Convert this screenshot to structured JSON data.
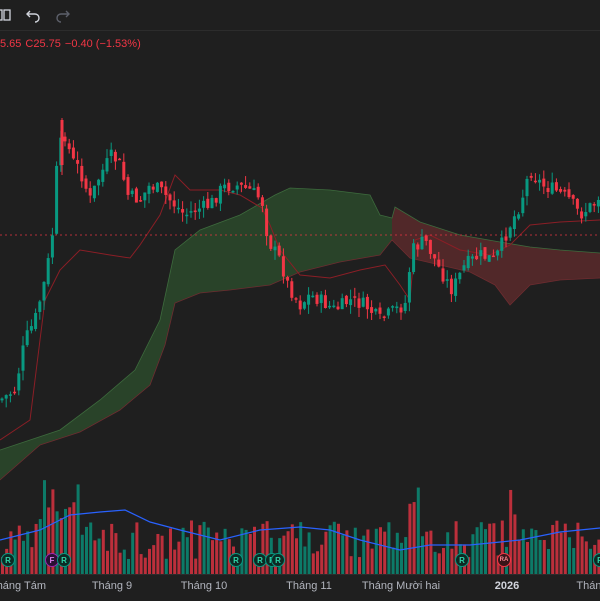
{
  "toolbar": {
    "undo_icon": "undo-icon",
    "redo_icon": "redo-icon",
    "layout_icon": "layout-icon"
  },
  "legend": {
    "partial_value": "5.65",
    "close_label": "C25.75",
    "change": "−0.40 (−1.53%)"
  },
  "colors": {
    "up": "#089981",
    "down": "#f23645",
    "cloud_bull": "#2b4a2b",
    "cloud_bear": "#5a2a2c",
    "volume_ma": "#2962ff",
    "lagging_line": "#8b1e26"
  },
  "x_axis": {
    "labels": [
      "Tháng Tám",
      "Tháng 9",
      "Tháng 10",
      "Tháng 11",
      "Tháng Mười hai",
      "2026",
      "Tháng"
    ]
  },
  "event_markers": [
    "R",
    "F",
    "R",
    "R",
    "R",
    "R",
    "R",
    "R",
    "RA",
    "R"
  ],
  "chart_data": {
    "type": "candlestick",
    "indicators": [
      "ichimoku",
      "volume",
      "volume_ma"
    ],
    "last_price_line": true,
    "grid": false
  }
}
